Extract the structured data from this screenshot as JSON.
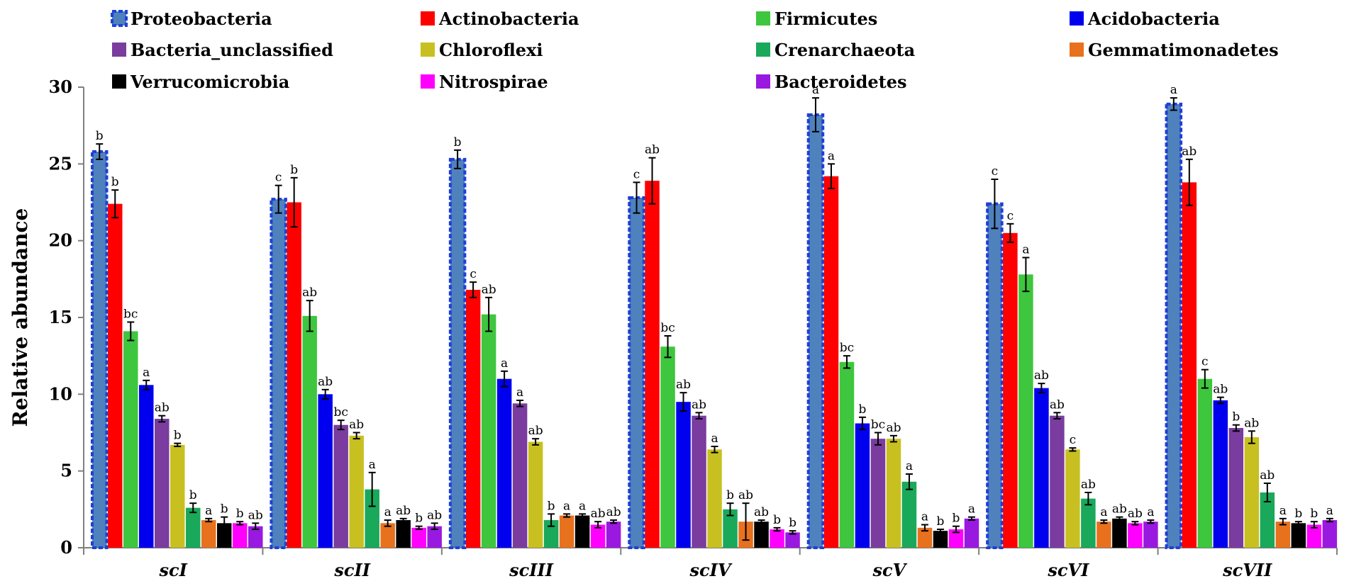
{
  "chart_data": {
    "type": "bar",
    "title": "",
    "xlabel": "",
    "ylabel": "Relative abundance",
    "ylim": [
      0,
      30
    ],
    "yticks": [
      0,
      5,
      10,
      15,
      20,
      25,
      30
    ],
    "grid": false,
    "legend_position": "top",
    "categories": [
      "scI",
      "scII",
      "scIII",
      "scIV",
      "scV",
      "scVI",
      "scVII"
    ],
    "series": [
      {
        "name": "Proteobacteria",
        "color": "#4f81bd",
        "border": "#1f3fd6",
        "values": [
          25.8,
          22.7,
          25.3,
          22.8,
          28.2,
          22.4,
          28.9
        ],
        "errors": [
          0.5,
          0.9,
          0.6,
          1.0,
          1.1,
          1.6,
          0.4
        ],
        "letters": [
          "b",
          "c",
          "b",
          "c",
          "a",
          "c",
          "a"
        ]
      },
      {
        "name": "Actinobacteria",
        "color": "#ff0000",
        "values": [
          22.4,
          22.5,
          16.8,
          23.9,
          24.2,
          20.5,
          23.8
        ],
        "errors": [
          0.9,
          1.6,
          0.5,
          1.5,
          0.8,
          0.6,
          1.5
        ],
        "letters": [
          "b",
          "b",
          "c",
          "ab",
          "a",
          "c",
          "ab"
        ]
      },
      {
        "name": "Firmicutes",
        "color": "#3ec63e",
        "values": [
          14.1,
          15.1,
          15.2,
          13.1,
          12.1,
          17.8,
          11.0
        ],
        "errors": [
          0.6,
          1.0,
          1.1,
          0.7,
          0.4,
          1.1,
          0.6
        ],
        "letters": [
          "bc",
          "ab",
          "ab",
          "bc",
          "bc",
          "a",
          "c"
        ]
      },
      {
        "name": "Acidobacteria",
        "color": "#0000ee",
        "values": [
          10.6,
          10.0,
          11.0,
          9.5,
          8.1,
          10.4,
          9.6
        ],
        "errors": [
          0.3,
          0.3,
          0.5,
          0.6,
          0.4,
          0.3,
          0.2
        ],
        "letters": [
          "a",
          "ab",
          "a",
          "ab",
          "b",
          "ab",
          "ab"
        ]
      },
      {
        "name": "Bacteria_unclassified",
        "color": "#7a3c9e",
        "values": [
          8.4,
          8.0,
          9.4,
          8.6,
          7.1,
          8.6,
          7.8
        ],
        "errors": [
          0.2,
          0.3,
          0.2,
          0.2,
          0.4,
          0.2,
          0.2
        ],
        "letters": [
          "ab",
          "bc",
          "a",
          "ab",
          "bc",
          "ab",
          "b"
        ]
      },
      {
        "name": "Chloroflexi",
        "color": "#c8c020",
        "values": [
          6.7,
          7.3,
          6.9,
          6.4,
          7.1,
          6.4,
          7.2
        ],
        "errors": [
          0.1,
          0.2,
          0.2,
          0.2,
          0.2,
          0.1,
          0.4
        ],
        "letters": [
          "b",
          "ab",
          "ab",
          "a",
          "ab",
          "c",
          "ab"
        ]
      },
      {
        "name": "Crenarchaeota",
        "color": "#1aa85a",
        "values": [
          2.6,
          3.8,
          1.8,
          2.5,
          4.3,
          3.2,
          3.6
        ],
        "errors": [
          0.3,
          1.1,
          0.4,
          0.4,
          0.5,
          0.4,
          0.6
        ],
        "letters": [
          "b",
          "a",
          "b",
          "b",
          "a",
          "ab",
          "ab"
        ]
      },
      {
        "name": "Gemmatimonadetes",
        "color": "#e8711e",
        "values": [
          1.8,
          1.6,
          2.1,
          1.7,
          1.3,
          1.7,
          1.7
        ],
        "errors": [
          0.1,
          0.2,
          0.1,
          1.2,
          0.2,
          0.1,
          0.2
        ],
        "letters": [
          "a",
          "a",
          "a",
          "ab",
          "a",
          "a",
          "a"
        ]
      },
      {
        "name": "Verrucomicrobia",
        "color": "#000000",
        "values": [
          1.6,
          1.8,
          2.1,
          1.7,
          1.1,
          1.9,
          1.6
        ],
        "errors": [
          0.4,
          0.1,
          0.1,
          0.1,
          0.1,
          0.1,
          0.1
        ],
        "letters": [
          "b",
          "ab",
          "a",
          "ab",
          "b",
          "ab",
          "b"
        ]
      },
      {
        "name": "Nitrospirae",
        "color": "#ff00ff",
        "values": [
          1.6,
          1.3,
          1.5,
          1.2,
          1.2,
          1.6,
          1.5
        ],
        "errors": [
          0.1,
          0.1,
          0.2,
          0.1,
          0.2,
          0.1,
          0.2
        ],
        "letters": [
          "b",
          "b",
          "ab",
          "b",
          "b",
          "ab",
          "b"
        ]
      },
      {
        "name": "Bacteroidetes",
        "color": "#9a19e0",
        "values": [
          1.4,
          1.4,
          1.7,
          1.0,
          1.9,
          1.7,
          1.8
        ],
        "errors": [
          0.2,
          0.2,
          0.1,
          0.1,
          0.1,
          0.1,
          0.1
        ],
        "letters": [
          "ab",
          "ab",
          "ab",
          "b",
          "a",
          "a",
          "a"
        ]
      }
    ]
  }
}
